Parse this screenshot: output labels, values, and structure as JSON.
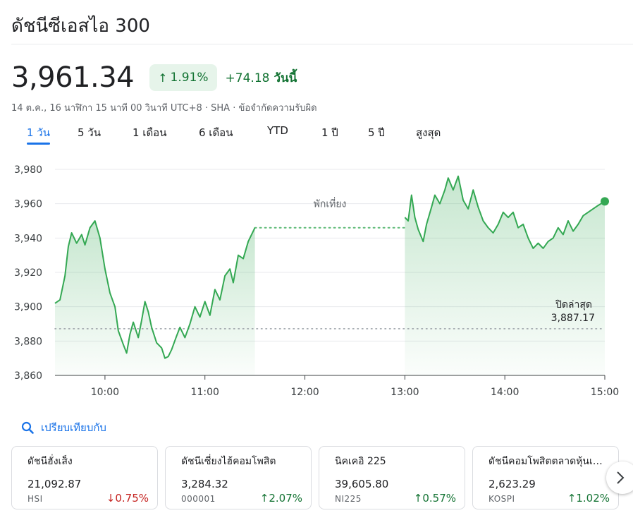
{
  "header": {
    "title": "ดัชนีซีเอสไอ 300",
    "price": "3,961.34",
    "change_pct": "1.91%",
    "change_abs": "+74.18",
    "change_period": "วันนี้",
    "meta": "14 ต.ค., 16 นาฬิกา 15 นาที 00 วินาที UTC+8 · SHA · ข้อจำกัดความรับผิด"
  },
  "tabs": [
    {
      "label": "1 วัน",
      "active": true
    },
    {
      "label": "5 วัน",
      "active": false
    },
    {
      "label": "1 เดือน",
      "active": false
    },
    {
      "label": "6 เดือน",
      "active": false
    },
    {
      "label": "YTD",
      "active": false
    },
    {
      "label": "1 ปี",
      "active": false
    },
    {
      "label": "5 ปี",
      "active": false
    },
    {
      "label": "สูงสุด",
      "active": false
    }
  ],
  "colors": {
    "up": "#137333",
    "down": "#c5221f",
    "line": "#34a853",
    "accent": "#1a73e8"
  },
  "chart_data": {
    "type": "line",
    "ylim": [
      3860,
      3980
    ],
    "y_ticks": [
      3980,
      3960,
      3940,
      3920,
      3900,
      3880,
      3860
    ],
    "y_tick_labels": [
      "3,980",
      "3,960",
      "3,940",
      "3,920",
      "3,900",
      "3,880",
      "3,860"
    ],
    "x_ticks": [
      "10:00",
      "11:00",
      "12:00",
      "13:00",
      "14:00",
      "15:00"
    ],
    "x_range": [
      "09:30",
      "15:00"
    ],
    "lunch_break": {
      "start": "11:30",
      "end": "13:00",
      "label": "พักเที่ยง",
      "value": 3946
    },
    "previous_close": {
      "label": "ปิดล่าสุด",
      "value": 3887.17,
      "value_label": "3,887.17"
    },
    "grid": true,
    "series": [
      {
        "points": [
          [
            "09:30",
            3902
          ],
          [
            "09:33",
            3904
          ],
          [
            "09:36",
            3918
          ],
          [
            "09:38",
            3935
          ],
          [
            "09:40",
            3943
          ],
          [
            "09:43",
            3937
          ],
          [
            "09:46",
            3942
          ],
          [
            "09:48",
            3936
          ],
          [
            "09:51",
            3946
          ],
          [
            "09:54",
            3950
          ],
          [
            "09:57",
            3940
          ],
          [
            "10:00",
            3922
          ],
          [
            "10:03",
            3908
          ],
          [
            "10:06",
            3900
          ],
          [
            "10:08",
            3886
          ],
          [
            "10:11",
            3878
          ],
          [
            "10:13",
            3873
          ],
          [
            "10:15",
            3884
          ],
          [
            "10:17",
            3891
          ],
          [
            "10:20",
            3882
          ],
          [
            "10:22",
            3892
          ],
          [
            "10:24",
            3903
          ],
          [
            "10:26",
            3897
          ],
          [
            "10:28",
            3888
          ],
          [
            "10:31",
            3879
          ],
          [
            "10:34",
            3876
          ],
          [
            "10:36",
            3870
          ],
          [
            "10:38",
            3871
          ],
          [
            "10:40",
            3875
          ],
          [
            "10:43",
            3883
          ],
          [
            "10:45",
            3888
          ],
          [
            "10:48",
            3882
          ],
          [
            "10:51",
            3890
          ],
          [
            "10:54",
            3900
          ],
          [
            "10:57",
            3894
          ],
          [
            "11:00",
            3903
          ],
          [
            "11:03",
            3895
          ],
          [
            "11:06",
            3910
          ],
          [
            "11:09",
            3904
          ],
          [
            "11:12",
            3918
          ],
          [
            "11:15",
            3922
          ],
          [
            "11:17",
            3914
          ],
          [
            "11:20",
            3930
          ],
          [
            "11:23",
            3928
          ],
          [
            "11:26",
            3938
          ],
          [
            "11:28",
            3942
          ],
          [
            "11:30",
            3946
          ],
          [
            "13:00",
            3952
          ],
          [
            "13:02",
            3950
          ],
          [
            "13:04",
            3965
          ],
          [
            "13:06",
            3952
          ],
          [
            "13:08",
            3945
          ],
          [
            "13:11",
            3938
          ],
          [
            "13:13",
            3948
          ],
          [
            "13:16",
            3958
          ],
          [
            "13:18",
            3965
          ],
          [
            "13:21",
            3960
          ],
          [
            "13:24",
            3968
          ],
          [
            "13:26",
            3975
          ],
          [
            "13:29",
            3968
          ],
          [
            "13:32",
            3976
          ],
          [
            "13:35",
            3962
          ],
          [
            "13:38",
            3957
          ],
          [
            "13:41",
            3968
          ],
          [
            "13:44",
            3958
          ],
          [
            "13:47",
            3950
          ],
          [
            "13:50",
            3946
          ],
          [
            "13:53",
            3943
          ],
          [
            "13:56",
            3948
          ],
          [
            "13:59",
            3955
          ],
          [
            "14:02",
            3952
          ],
          [
            "14:05",
            3955
          ],
          [
            "14:08",
            3946
          ],
          [
            "14:11",
            3948
          ],
          [
            "14:14",
            3940
          ],
          [
            "14:17",
            3934
          ],
          [
            "14:20",
            3937
          ],
          [
            "14:23",
            3934
          ],
          [
            "14:26",
            3938
          ],
          [
            "14:29",
            3940
          ],
          [
            "14:32",
            3946
          ],
          [
            "14:35",
            3942
          ],
          [
            "14:38",
            3950
          ],
          [
            "14:41",
            3944
          ],
          [
            "14:44",
            3948
          ],
          [
            "14:47",
            3953
          ],
          [
            "14:50",
            3955
          ],
          [
            "14:53",
            3957
          ],
          [
            "14:56",
            3959
          ],
          [
            "15:00",
            3961.34
          ]
        ]
      }
    ]
  },
  "compare": {
    "label": "เปรียบเทียบกับ"
  },
  "cards": [
    {
      "name": "ดัชนีฮั่งเส็ง",
      "price": "21,092.87",
      "symbol": "HSI",
      "change": "0.75%",
      "direction": "down"
    },
    {
      "name": "ดัชนีเซี่ยงไฮ้คอมโพสิต",
      "price": "3,284.32",
      "symbol": "000001",
      "change": "2.07%",
      "direction": "up"
    },
    {
      "name": "นิคเคอิ 225",
      "price": "39,605.80",
      "symbol": "NI225",
      "change": "0.57%",
      "direction": "up"
    },
    {
      "name": "ดัชนีคอมโพสิตตลาดหุ้นเ…",
      "price": "2,623.29",
      "symbol": "KOSPI",
      "change": "1.02%",
      "direction": "up"
    }
  ]
}
